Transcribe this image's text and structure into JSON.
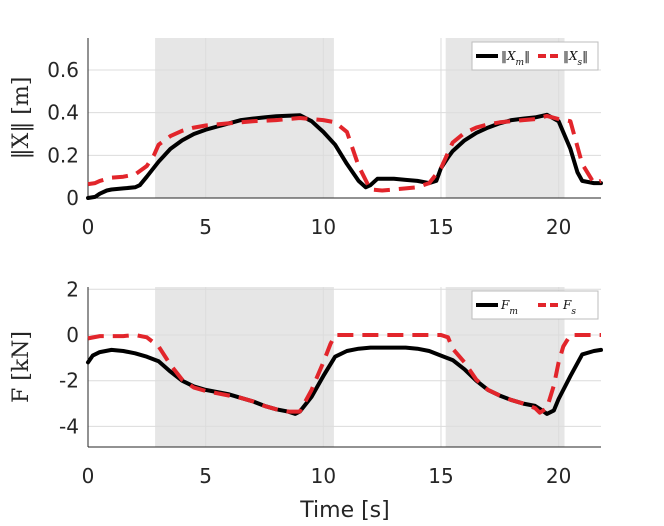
{
  "colors": {
    "master": "#000000",
    "slave": "#e2252b",
    "shade": "#e6e6e6",
    "grid": "#dcdcdc"
  },
  "chart_data": [
    {
      "type": "line",
      "ylabel": "‖X‖ [m]",
      "xlim": [
        0,
        21.8
      ],
      "ylim": [
        0,
        0.75
      ],
      "xticks": [
        "0",
        "5",
        "10",
        "15",
        "20"
      ],
      "yticks": [
        "0",
        "0.2",
        "0.4",
        "0.6"
      ],
      "shaded_intervals": [
        [
          2.85,
          10.45
        ],
        [
          15.2,
          20.25
        ]
      ],
      "legend": {
        "location": "top-right",
        "entries": [
          "‖X_m‖",
          "‖X_s‖"
        ]
      },
      "series": [
        {
          "name": "‖X_m‖",
          "style": "solid",
          "x": [
            0,
            0.3,
            0.5,
            0.8,
            1,
            1.5,
            2,
            2.2,
            2.5,
            3,
            3.5,
            4,
            4.5,
            5,
            5.5,
            6,
            6.5,
            7,
            7.5,
            8,
            8.5,
            9,
            9.5,
            10,
            10.5,
            11,
            11.5,
            11.8,
            12,
            12.3,
            13,
            13.5,
            14,
            14.5,
            14.8,
            15,
            15.3,
            15.5,
            16,
            16.5,
            17,
            17.5,
            18,
            18.5,
            19,
            19.5,
            20,
            20.5,
            20.8,
            21,
            21.5,
            21.8
          ],
          "y": [
            0,
            0.005,
            0.02,
            0.035,
            0.04,
            0.045,
            0.05,
            0.06,
            0.1,
            0.17,
            0.23,
            0.27,
            0.3,
            0.32,
            0.335,
            0.35,
            0.365,
            0.372,
            0.378,
            0.383,
            0.386,
            0.388,
            0.36,
            0.31,
            0.25,
            0.16,
            0.08,
            0.05,
            0.06,
            0.09,
            0.09,
            0.085,
            0.08,
            0.07,
            0.08,
            0.14,
            0.19,
            0.22,
            0.27,
            0.305,
            0.33,
            0.35,
            0.365,
            0.372,
            0.378,
            0.39,
            0.36,
            0.23,
            0.12,
            0.08,
            0.07,
            0.07
          ]
        },
        {
          "name": "‖X_s‖",
          "style": "dashed",
          "x": [
            0,
            0.3,
            0.5,
            1,
            1.5,
            2,
            2.5,
            2.8,
            3,
            3.5,
            4,
            4.5,
            5,
            5.5,
            6,
            6.5,
            7,
            7.5,
            8,
            8.5,
            9,
            9.5,
            10,
            10.5,
            11,
            11.5,
            12,
            12.5,
            13,
            13.5,
            14,
            14.5,
            15,
            15.5,
            16,
            16.5,
            17,
            17.5,
            18,
            18.5,
            19,
            19.5,
            20,
            20.5,
            21,
            21.5,
            21.8
          ],
          "y": [
            0.065,
            0.07,
            0.08,
            0.095,
            0.1,
            0.11,
            0.15,
            0.2,
            0.25,
            0.29,
            0.315,
            0.33,
            0.34,
            0.345,
            0.35,
            0.355,
            0.36,
            0.362,
            0.365,
            0.37,
            0.375,
            0.37,
            0.365,
            0.355,
            0.31,
            0.15,
            0.04,
            0.035,
            0.04,
            0.045,
            0.05,
            0.07,
            0.14,
            0.26,
            0.305,
            0.33,
            0.345,
            0.355,
            0.36,
            0.365,
            0.37,
            0.385,
            0.37,
            0.36,
            0.16,
            0.07,
            0.08
          ]
        }
      ]
    },
    {
      "type": "line",
      "ylabel": "F [kN]",
      "xlabel": "Time [s]",
      "xlim": [
        0,
        21.8
      ],
      "ylim": [
        -4.9,
        2.1
      ],
      "xticks": [
        "0",
        "5",
        "10",
        "15",
        "20"
      ],
      "yticks": [
        "2",
        "0",
        "-2",
        "-4"
      ],
      "shaded_intervals": [
        [
          2.85,
          10.45
        ],
        [
          15.2,
          20.25
        ]
      ],
      "legend": {
        "location": "top-right",
        "entries": [
          "F_m",
          "F_s"
        ]
      },
      "series": [
        {
          "name": "F_m",
          "style": "solid",
          "x": [
            0,
            0.2,
            0.5,
            1,
            1.5,
            2,
            2.5,
            3,
            3.5,
            4,
            4.5,
            5,
            5.5,
            6,
            6.5,
            7,
            7.5,
            8,
            8.5,
            8.8,
            9,
            9.5,
            10,
            10.5,
            11,
            11.5,
            12,
            12.5,
            13,
            13.5,
            14,
            14.5,
            15,
            15.5,
            16,
            16.5,
            17,
            17.5,
            18,
            18.5,
            19,
            19.3,
            19.5,
            19.8,
            20,
            20.5,
            21,
            21.5,
            21.8
          ],
          "y": [
            -1.2,
            -0.9,
            -0.75,
            -0.65,
            -0.7,
            -0.8,
            -0.95,
            -1.15,
            -1.6,
            -2.0,
            -2.25,
            -2.4,
            -2.5,
            -2.6,
            -2.75,
            -2.9,
            -3.1,
            -3.25,
            -3.35,
            -3.45,
            -3.35,
            -2.7,
            -1.8,
            -0.95,
            -0.7,
            -0.6,
            -0.55,
            -0.55,
            -0.55,
            -0.55,
            -0.6,
            -0.7,
            -0.9,
            -1.1,
            -1.5,
            -2.0,
            -2.4,
            -2.65,
            -2.85,
            -3.0,
            -3.1,
            -3.3,
            -3.45,
            -3.3,
            -2.8,
            -1.8,
            -0.85,
            -0.7,
            -0.65
          ]
        },
        {
          "name": "F_s",
          "style": "dashed",
          "x": [
            0,
            0.5,
            1,
            1.5,
            2,
            2.5,
            3,
            3.5,
            4,
            4.5,
            5,
            5.5,
            6,
            6.5,
            7,
            7.5,
            8,
            8.5,
            9,
            9.5,
            10,
            10.3,
            10.5,
            11,
            12,
            13,
            14,
            15,
            15.3,
            15.5,
            16,
            16.5,
            17,
            17.5,
            18,
            18.5,
            19,
            19.2,
            19.5,
            19.8,
            20,
            20.2,
            20.5,
            21,
            21.8
          ],
          "y": [
            -0.15,
            -0.05,
            -0.05,
            -0.05,
            0,
            -0.1,
            -0.5,
            -1.3,
            -1.95,
            -2.3,
            -2.45,
            -2.55,
            -2.65,
            -2.75,
            -2.9,
            -3.1,
            -3.25,
            -3.35,
            -3.35,
            -2.4,
            -1.2,
            -0.4,
            0,
            0,
            0,
            0,
            0,
            0,
            -0.1,
            -0.6,
            -1.2,
            -1.95,
            -2.4,
            -2.65,
            -2.85,
            -3.0,
            -3.2,
            -3.4,
            -3.2,
            -2.2,
            -1.2,
            -0.5,
            0,
            0,
            0
          ]
        }
      ]
    }
  ]
}
